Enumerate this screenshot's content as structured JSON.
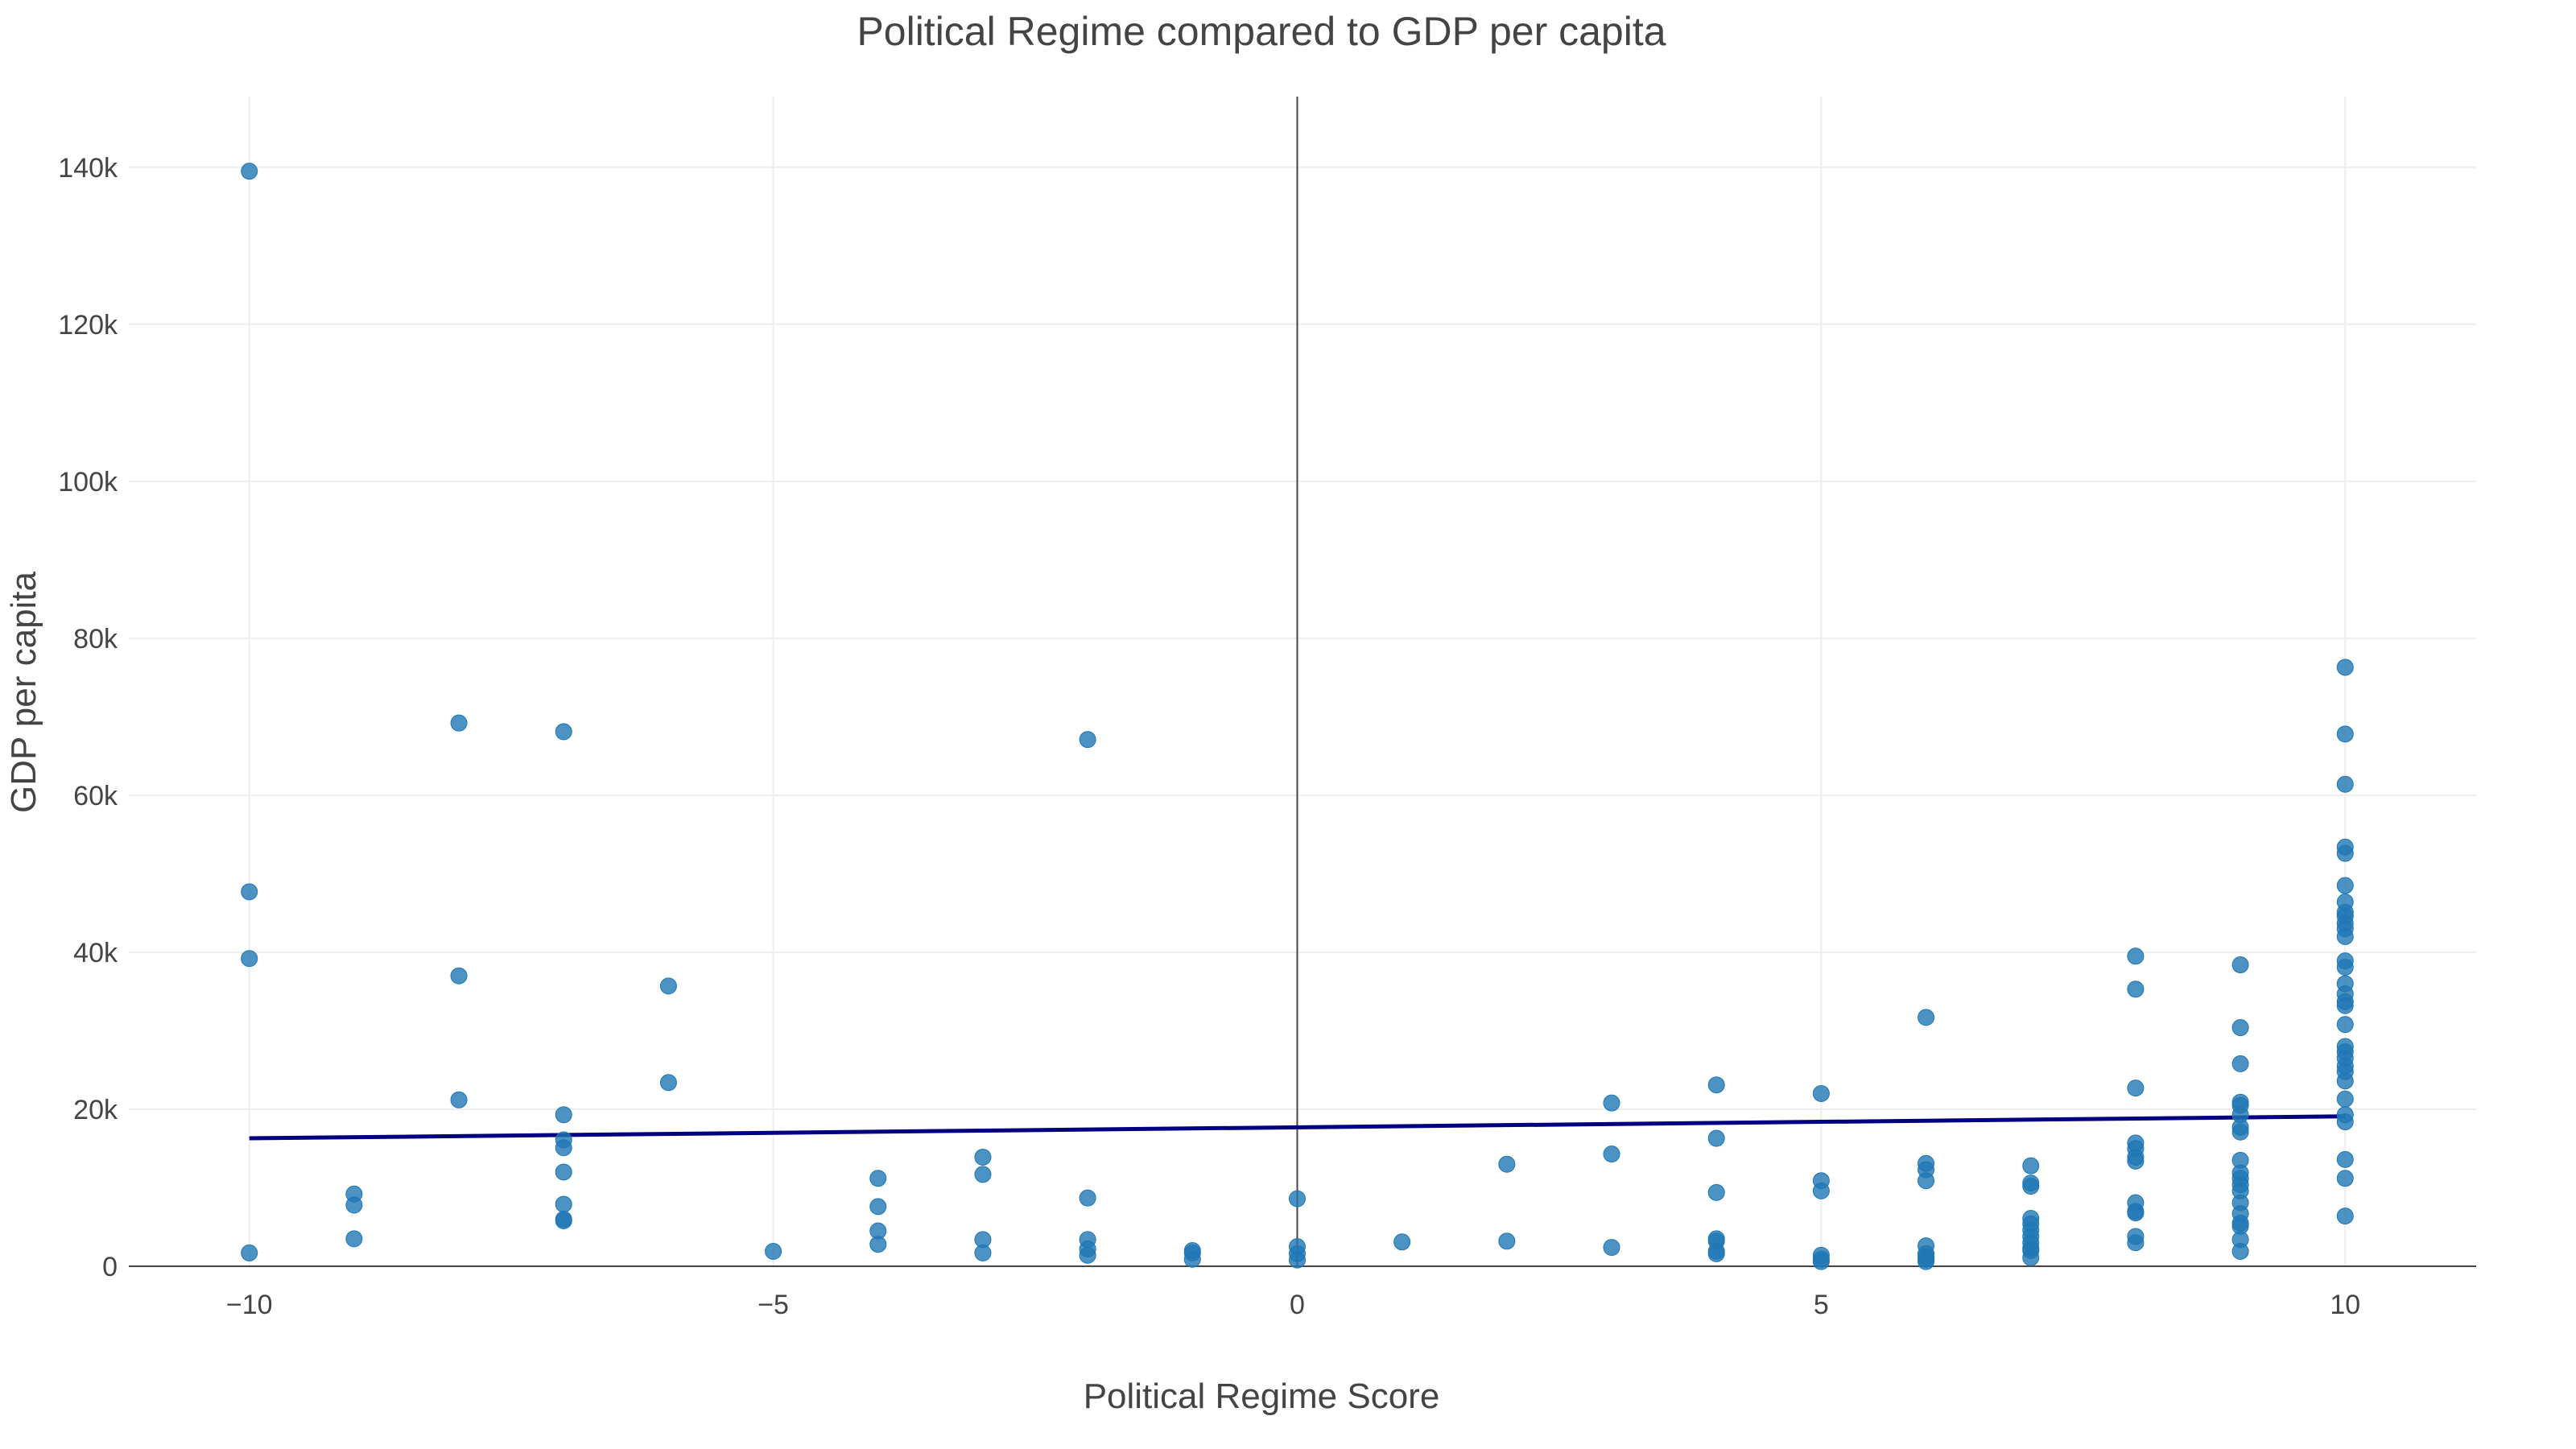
{
  "chart_data": {
    "type": "scatter",
    "title": "Political Regime compared to GDP per capita",
    "xlabel": "Political Regime Score",
    "ylabel": "GDP per capita",
    "xlim": [
      -11.15,
      11.25
    ],
    "ylim": [
      0,
      149000
    ],
    "x_ticks": [
      -10,
      -5,
      0,
      5,
      10
    ],
    "x_tick_labels": [
      "−10",
      "−5",
      "0",
      "5",
      "10"
    ],
    "y_ticks": [
      0,
      20000,
      40000,
      60000,
      80000,
      100000,
      120000,
      140000
    ],
    "y_tick_labels": [
      "0",
      "20k",
      "40k",
      "60k",
      "80k",
      "100k",
      "120k",
      "140k"
    ],
    "grid": true,
    "legend": false,
    "colors": {
      "points": "#1f77b4",
      "trendline": "#000080",
      "zeroline": "#444444",
      "grid": "#eeeeee"
    },
    "trendline": {
      "x": [
        -10,
        10
      ],
      "y": [
        16300,
        19100
      ]
    },
    "points": [
      [
        -10,
        139500
      ],
      [
        -10,
        47700
      ],
      [
        -10,
        39200
      ],
      [
        -10,
        1700
      ],
      [
        -9,
        9200
      ],
      [
        -9,
        7800
      ],
      [
        -9,
        3500
      ],
      [
        -8,
        69200
      ],
      [
        -8,
        37000
      ],
      [
        -8,
        21200
      ],
      [
        -7,
        68100
      ],
      [
        -7,
        19300
      ],
      [
        -7,
        16100
      ],
      [
        -7,
        15100
      ],
      [
        -7,
        12000
      ],
      [
        -7,
        7900
      ],
      [
        -7,
        6000
      ],
      [
        -7,
        5800
      ],
      [
        -6,
        35700
      ],
      [
        -6,
        23400
      ],
      [
        -5,
        1900
      ],
      [
        -4,
        11200
      ],
      [
        -4,
        7600
      ],
      [
        -4,
        4500
      ],
      [
        -4,
        2800
      ],
      [
        -3,
        13900
      ],
      [
        -3,
        11700
      ],
      [
        -3,
        3400
      ],
      [
        -3,
        1700
      ],
      [
        -2,
        67100
      ],
      [
        -2,
        8700
      ],
      [
        -2,
        3400
      ],
      [
        -2,
        2200
      ],
      [
        -2,
        1400
      ],
      [
        -1,
        2000
      ],
      [
        -1,
        1700
      ],
      [
        -1,
        900
      ],
      [
        0,
        8600
      ],
      [
        0,
        2500
      ],
      [
        0,
        1600
      ],
      [
        0,
        800
      ],
      [
        1,
        3100
      ],
      [
        2,
        13000
      ],
      [
        2,
        3200
      ],
      [
        3,
        20800
      ],
      [
        3,
        14300
      ],
      [
        3,
        2400
      ],
      [
        4,
        23100
      ],
      [
        4,
        16300
      ],
      [
        4,
        9400
      ],
      [
        4,
        3500
      ],
      [
        4,
        3200
      ],
      [
        4,
        1900
      ],
      [
        4,
        1600
      ],
      [
        5,
        22000
      ],
      [
        5,
        10900
      ],
      [
        5,
        9600
      ],
      [
        5,
        1400
      ],
      [
        5,
        900
      ],
      [
        5,
        600
      ],
      [
        6,
        31700
      ],
      [
        6,
        13100
      ],
      [
        6,
        12300
      ],
      [
        6,
        10900
      ],
      [
        6,
        2600
      ],
      [
        6,
        1600
      ],
      [
        6,
        1200
      ],
      [
        6,
        900
      ],
      [
        6,
        600
      ],
      [
        7,
        12800
      ],
      [
        7,
        10600
      ],
      [
        7,
        10200
      ],
      [
        7,
        6100
      ],
      [
        7,
        5400
      ],
      [
        7,
        4600
      ],
      [
        7,
        3800
      ],
      [
        7,
        3000
      ],
      [
        7,
        2300
      ],
      [
        7,
        2000
      ],
      [
        7,
        1100
      ],
      [
        8,
        39500
      ],
      [
        8,
        35300
      ],
      [
        8,
        22700
      ],
      [
        8,
        15700
      ],
      [
        8,
        15000
      ],
      [
        8,
        13900
      ],
      [
        8,
        13400
      ],
      [
        8,
        8100
      ],
      [
        8,
        7000
      ],
      [
        8,
        6800
      ],
      [
        8,
        3800
      ],
      [
        8,
        3000
      ],
      [
        9,
        38400
      ],
      [
        9,
        30400
      ],
      [
        9,
        25800
      ],
      [
        9,
        20900
      ],
      [
        9,
        20500
      ],
      [
        9,
        19300
      ],
      [
        9,
        17700
      ],
      [
        9,
        17100
      ],
      [
        9,
        13500
      ],
      [
        9,
        11900
      ],
      [
        9,
        11200
      ],
      [
        9,
        10400
      ],
      [
        9,
        9600
      ],
      [
        9,
        8100
      ],
      [
        9,
        6700
      ],
      [
        9,
        5500
      ],
      [
        9,
        5100
      ],
      [
        9,
        3400
      ],
      [
        9,
        1900
      ],
      [
        10,
        76300
      ],
      [
        10,
        67800
      ],
      [
        10,
        61400
      ],
      [
        10,
        53400
      ],
      [
        10,
        52600
      ],
      [
        10,
        48500
      ],
      [
        10,
        46400
      ],
      [
        10,
        45100
      ],
      [
        10,
        44600
      ],
      [
        10,
        43700
      ],
      [
        10,
        43000
      ],
      [
        10,
        42000
      ],
      [
        10,
        38900
      ],
      [
        10,
        38100
      ],
      [
        10,
        36000
      ],
      [
        10,
        34700
      ],
      [
        10,
        33700
      ],
      [
        10,
        33200
      ],
      [
        10,
        30800
      ],
      [
        10,
        28000
      ],
      [
        10,
        27300
      ],
      [
        10,
        26500
      ],
      [
        10,
        25500
      ],
      [
        10,
        24800
      ],
      [
        10,
        23600
      ],
      [
        10,
        21300
      ],
      [
        10,
        19300
      ],
      [
        10,
        18400
      ],
      [
        10,
        13600
      ],
      [
        10,
        11200
      ],
      [
        10,
        6400
      ]
    ]
  }
}
